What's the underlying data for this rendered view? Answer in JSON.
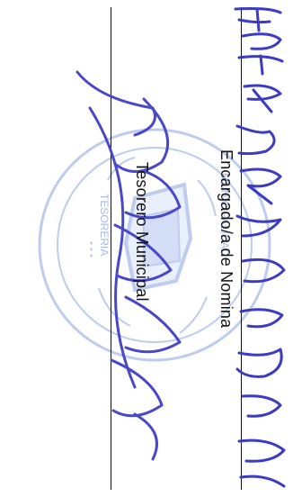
{
  "signatures": [
    {
      "role": "Encargado/a de Nomina",
      "handwritten_name": "Edilin Mantesa Garcia"
    },
    {
      "role": "Tesorero Municipal",
      "handwritten_name": "Juan Rodriguez"
    }
  ],
  "seal": {
    "text": "TESORERIA MUNICIPAL",
    "color": "#5a7fd6"
  },
  "colors": {
    "ink_signature": "#3b3bc4",
    "text": "#111111"
  }
}
